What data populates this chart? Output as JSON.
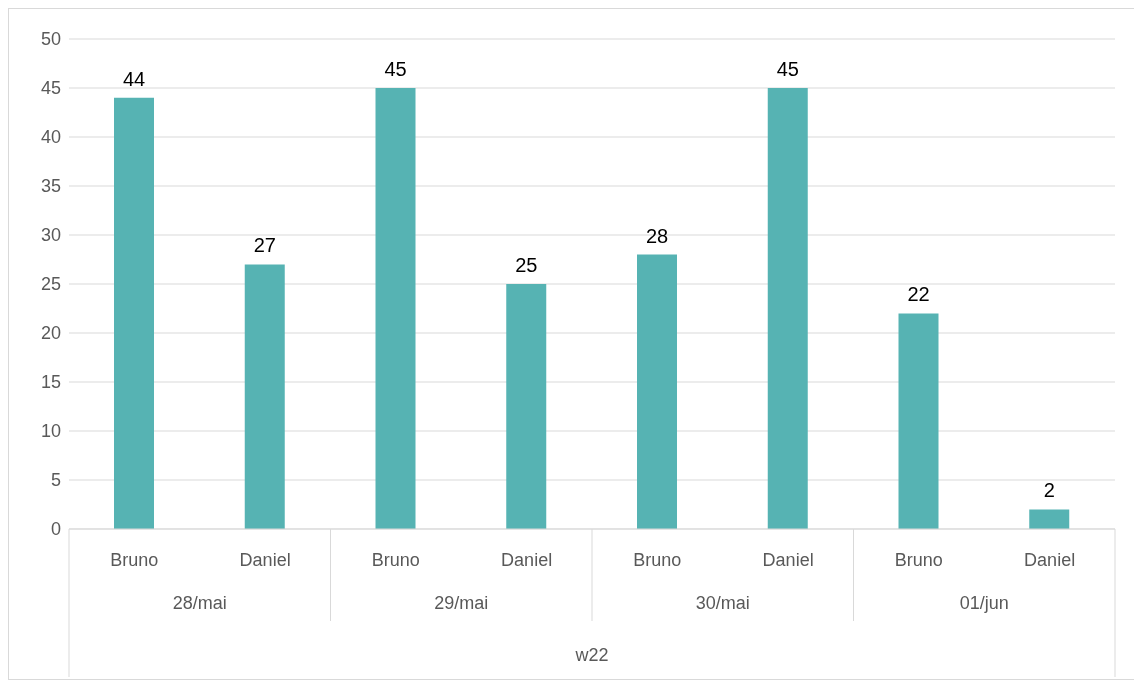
{
  "chart_data": {
    "type": "bar",
    "xlabel": "w22",
    "categories": [
      "Bruno",
      "Daniel",
      "Bruno",
      "Daniel",
      "Bruno",
      "Daniel",
      "Bruno",
      "Daniel"
    ],
    "values": [
      44,
      27,
      45,
      25,
      28,
      45,
      22,
      2
    ],
    "color": "#56b3b3",
    "annotations": [
      "28/mai",
      "29/mai",
      "30/mai",
      "01/jun"
    ],
    "ylim": [
      0,
      50
    ],
    "yticks": [
      0,
      5,
      10,
      15,
      20,
      25,
      30,
      35,
      40,
      45,
      50
    ],
    "grid": "y",
    "data_labels": true
  }
}
